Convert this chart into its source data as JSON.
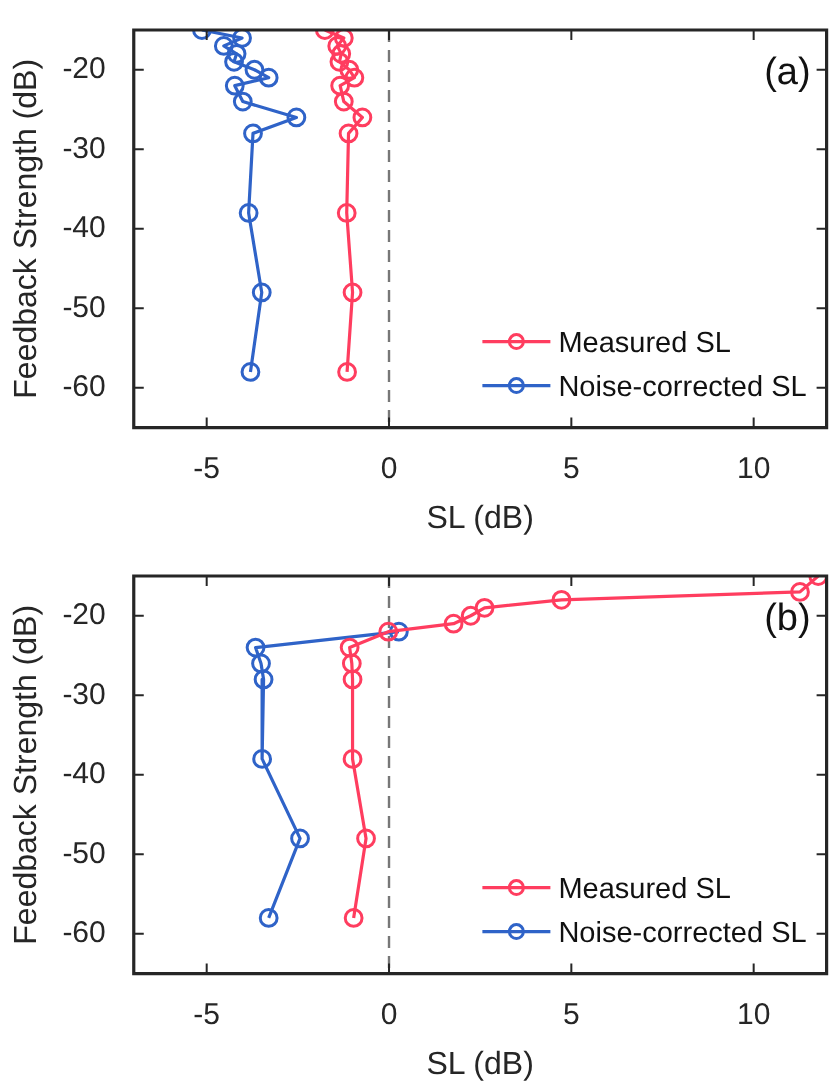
{
  "chart_data": [
    {
      "type": "line",
      "xlabel": "SL (dB)",
      "ylabel": "Feedback Strength (dB)",
      "xlim": [
        -7,
        12
      ],
      "xticks": [
        -5,
        0,
        5,
        10
      ],
      "ylim": [
        -65,
        -15
      ],
      "yticks": [
        -20,
        -30,
        -40,
        -50,
        -60
      ],
      "grid": false,
      "marker": "circle",
      "line_style": "solid",
      "legend": "bottom right",
      "annotations": [
        "(a)"
      ],
      "ref_lines": [
        {
          "axis": "x",
          "value": 0,
          "color": "#777777",
          "line_style": "dashed"
        }
      ],
      "series": [
        {
          "name": "Measured SL",
          "color": "#ff3d5f",
          "x": [
            -1.76,
            -1.24,
            -1.42,
            -1.31,
            -1.36,
            -1.09,
            -0.95,
            -1.34,
            -1.24,
            -0.73,
            -1.11,
            -1.16,
            -1.0,
            -1.15
          ],
          "values": [
            -15,
            -16,
            -17,
            -18,
            -19,
            -20,
            -21,
            -22,
            -24,
            -26,
            -28,
            -38,
            -48,
            -58
          ]
        },
        {
          "name": "Noise-corrected SL",
          "color": "#2f63c8",
          "x": [
            -5.13,
            -4.03,
            -4.53,
            -4.18,
            -4.25,
            -3.69,
            -3.3,
            -4.23,
            -4.01,
            -2.54,
            -3.73,
            -3.85,
            -3.49,
            -3.8
          ],
          "values": [
            -15,
            -16,
            -17,
            -18,
            -19,
            -20,
            -21,
            -22,
            -24,
            -26,
            -28,
            -38,
            -48,
            -58
          ]
        }
      ]
    },
    {
      "type": "line",
      "xlabel": "SL (dB)",
      "ylabel": "Feedback Strength (dB)",
      "xlim": [
        -7,
        12
      ],
      "xticks": [
        -5,
        0,
        5,
        10
      ],
      "ylim": [
        -65,
        -15
      ],
      "yticks": [
        -20,
        -30,
        -40,
        -50,
        -60
      ],
      "grid": false,
      "marker": "circle",
      "line_style": "solid",
      "legend": "bottom right",
      "annotations": [
        "(b)"
      ],
      "ref_lines": [
        {
          "axis": "x",
          "value": 0,
          "color": "#777777",
          "line_style": "dashed"
        }
      ],
      "series": [
        {
          "name": "Measured SL",
          "color": "#ff3d5f",
          "x": [
            11.77,
            11.27,
            4.73,
            2.62,
            2.24,
            1.77,
            -0.02,
            -1.08,
            -1.02,
            -1.0,
            -1.0,
            -0.63,
            -0.97
          ],
          "values": [
            -15,
            -17,
            -18,
            -19,
            -20,
            -21,
            -22,
            -24,
            -26,
            -28,
            -38,
            -48,
            -58
          ]
        },
        {
          "name": "Noise-corrected SL",
          "color": "#2f63c8",
          "x": [
            0.27,
            -3.66,
            -3.51,
            -3.44,
            -3.48,
            -2.44,
            -3.3
          ],
          "values": [
            -22,
            -24,
            -26,
            -28,
            -38,
            -48,
            -58
          ]
        }
      ]
    }
  ]
}
